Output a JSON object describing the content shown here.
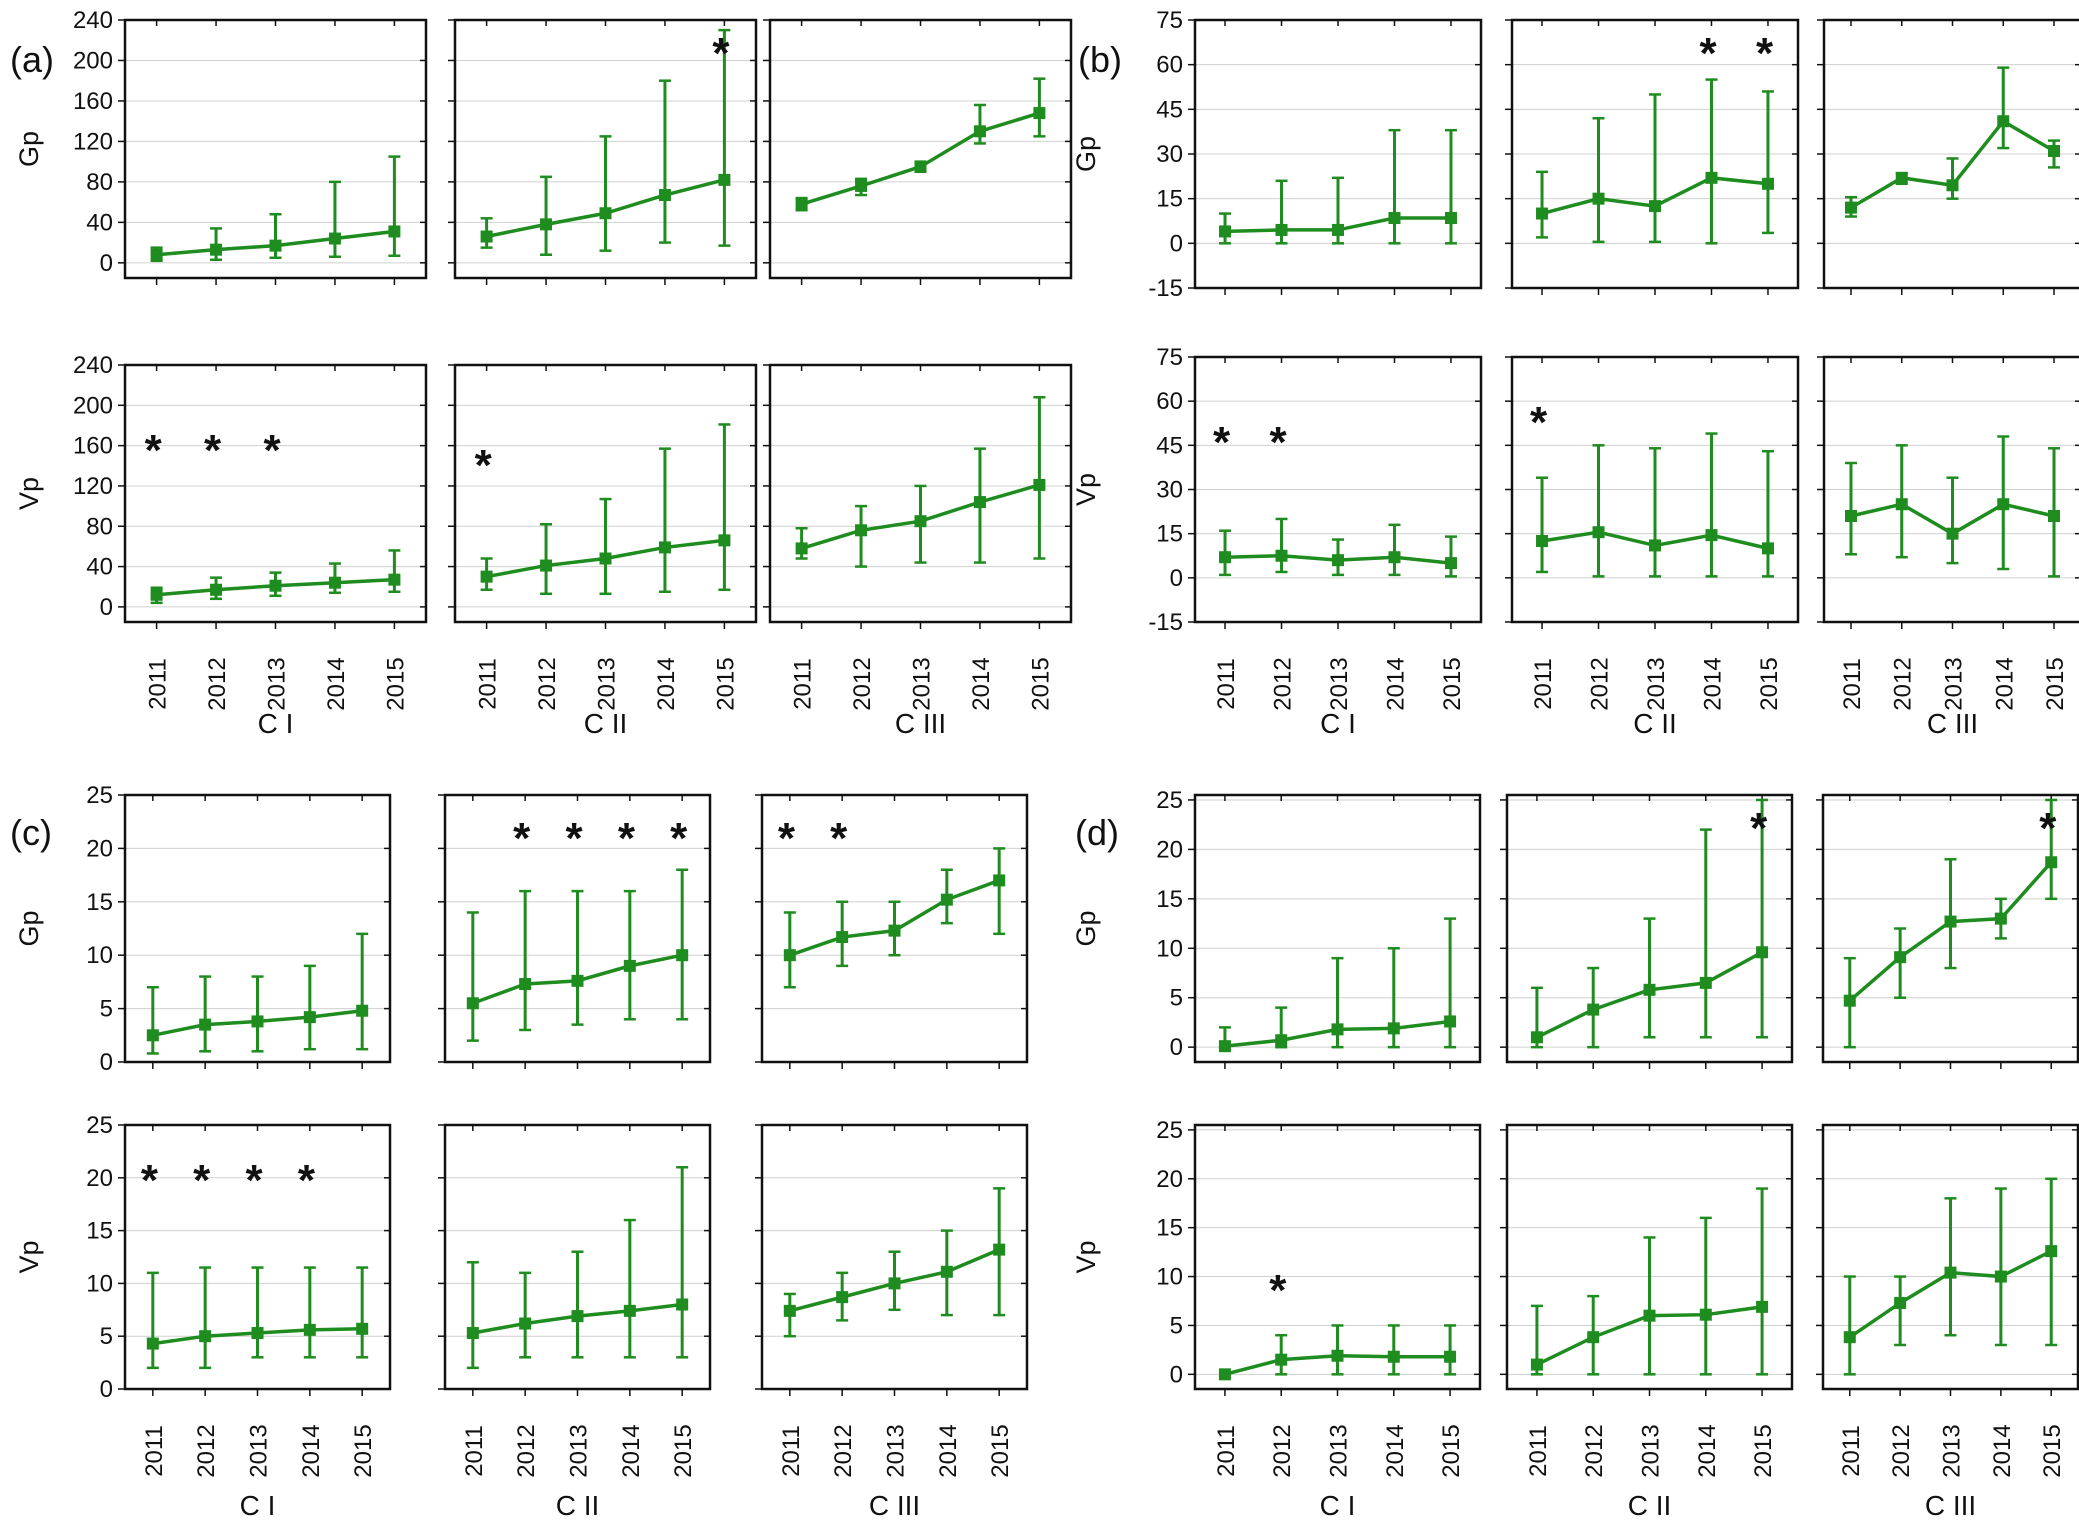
{
  "figure": {
    "years": [
      "2011",
      "2012",
      "2013",
      "2014",
      "2015"
    ],
    "groups": [
      "C I",
      "C II",
      "C III"
    ],
    "row_labels": [
      "Gp",
      "Vp"
    ],
    "line_color": "#1e8c1e",
    "grid_color": "#d0d0d0"
  },
  "chart_data": [
    {
      "panel": "(a)",
      "type": "line",
      "error_bars": true,
      "x": [
        "2011",
        "2012",
        "2013",
        "2014",
        "2015"
      ],
      "yticks": [
        0,
        40,
        80,
        120,
        160,
        200,
        240
      ],
      "ylim": [
        -15,
        240
      ],
      "grid": true,
      "rows": [
        {
          "ylabel": "Gp",
          "groups": [
            {
              "name": "C I",
              "values": [
                8,
                13,
                17,
                24,
                31
              ],
              "lower": [
                2,
                3,
                5,
                6,
                7
              ],
              "upper": [
                15,
                34,
                48,
                80,
                105
              ],
              "stars": []
            },
            {
              "name": "C II",
              "values": [
                26,
                38,
                49,
                67,
                82
              ],
              "lower": [
                15,
                8,
                12,
                20,
                17
              ],
              "upper": [
                44,
                85,
                125,
                180,
                230
              ],
              "stars": [
                "2015"
              ]
            },
            {
              "name": "C III",
              "values": [
                58,
                76,
                95,
                130,
                148
              ],
              "lower": [
                52,
                67,
                90,
                118,
                125
              ],
              "upper": [
                64,
                83,
                100,
                156,
                182
              ],
              "stars": []
            }
          ]
        },
        {
          "ylabel": "Vp",
          "groups": [
            {
              "name": "C I",
              "values": [
                12,
                17,
                21,
                24,
                27
              ],
              "lower": [
                4,
                8,
                11,
                14,
                15
              ],
              "upper": [
                19,
                29,
                34,
                43,
                56
              ],
              "stars": [
                "2011",
                "2012",
                "2013"
              ]
            },
            {
              "name": "C II",
              "values": [
                30,
                41,
                48,
                59,
                66
              ],
              "lower": [
                17,
                13,
                13,
                15,
                17
              ],
              "upper": [
                48,
                82,
                107,
                157,
                181
              ],
              "stars": [
                "2011"
              ]
            },
            {
              "name": "C III",
              "values": [
                58,
                76,
                85,
                104,
                121
              ],
              "lower": [
                48,
                40,
                44,
                44,
                48
              ],
              "upper": [
                78,
                100,
                120,
                157,
                208
              ],
              "stars": []
            }
          ]
        }
      ]
    },
    {
      "panel": "(b)",
      "type": "line",
      "error_bars": true,
      "x": [
        "2011",
        "2012",
        "2013",
        "2014",
        "2015"
      ],
      "yticks": [
        -15,
        0,
        15,
        30,
        45,
        60,
        75
      ],
      "ylim": [
        -15,
        75
      ],
      "grid": true,
      "rows": [
        {
          "ylabel": "Gp",
          "groups": [
            {
              "name": "C I",
              "values": [
                4,
                4.5,
                4.5,
                8.5,
                8.5
              ],
              "lower": [
                0,
                0,
                0,
                0,
                0
              ],
              "upper": [
                10,
                21,
                22,
                38,
                38
              ],
              "stars": []
            },
            {
              "name": "C II",
              "values": [
                10,
                15,
                12.5,
                22,
                20
              ],
              "lower": [
                2,
                0.5,
                0.5,
                0,
                3.5
              ],
              "upper": [
                24,
                42,
                50,
                55,
                51
              ],
              "stars": [
                "2014",
                "2015"
              ]
            },
            {
              "name": "C III",
              "values": [
                12,
                22,
                19.5,
                41,
                31
              ],
              "lower": [
                9,
                20,
                15,
                32,
                25.5
              ],
              "upper": [
                15.5,
                23.5,
                28.5,
                59,
                34.5
              ],
              "stars": []
            }
          ]
        },
        {
          "ylabel": "Vp",
          "groups": [
            {
              "name": "C I",
              "values": [
                7,
                7.5,
                6,
                7,
                5
              ],
              "lower": [
                1,
                2,
                1,
                1,
                0.5
              ],
              "upper": [
                16,
                20,
                13,
                18,
                14
              ],
              "stars": [
                "2011",
                "2012"
              ]
            },
            {
              "name": "C II",
              "values": [
                12.5,
                15.5,
                11,
                14.5,
                10
              ],
              "lower": [
                2,
                0.5,
                0.5,
                0.5,
                0.5
              ],
              "upper": [
                34,
                45,
                44,
                49,
                43
              ],
              "stars": [
                "2011"
              ]
            },
            {
              "name": "C III",
              "values": [
                21,
                25,
                15,
                25,
                21
              ],
              "lower": [
                8,
                7,
                5,
                3,
                0.5
              ],
              "upper": [
                39,
                45,
                34,
                48,
                44
              ],
              "stars": []
            }
          ]
        }
      ]
    },
    {
      "panel": "(c)",
      "type": "line",
      "error_bars": true,
      "x": [
        "2011",
        "2012",
        "2013",
        "2014",
        "2015"
      ],
      "yticks": [
        0,
        5,
        10,
        15,
        20,
        25
      ],
      "ylim": [
        0,
        25
      ],
      "grid": true,
      "rows": [
        {
          "ylabel": "Gp",
          "groups": [
            {
              "name": "C I",
              "values": [
                2.5,
                3.5,
                3.8,
                4.2,
                4.8
              ],
              "lower": [
                0.8,
                1,
                1,
                1.2,
                1.2
              ],
              "upper": [
                7,
                8,
                8,
                9,
                12
              ],
              "stars": []
            },
            {
              "name": "C II",
              "values": [
                5.5,
                7.3,
                7.6,
                9,
                10
              ],
              "lower": [
                2,
                3,
                3.5,
                4,
                4
              ],
              "upper": [
                14,
                16,
                16,
                16,
                18
              ],
              "stars": [
                "2012",
                "2013",
                "2014",
                "2015"
              ]
            },
            {
              "name": "C III",
              "values": [
                10,
                11.7,
                12.3,
                15.2,
                17
              ],
              "lower": [
                7,
                9,
                10,
                13,
                12
              ],
              "upper": [
                14,
                15,
                15,
                18,
                20
              ],
              "stars": [
                "2011",
                "2012"
              ]
            }
          ]
        },
        {
          "ylabel": "Vp",
          "groups": [
            {
              "name": "C I",
              "values": [
                4.3,
                5,
                5.3,
                5.6,
                5.7
              ],
              "lower": [
                2,
                2,
                3,
                3,
                3
              ],
              "upper": [
                11,
                11.5,
                11.5,
                11.5,
                11.5
              ],
              "stars": [
                "2011",
                "2012",
                "2013",
                "2014"
              ]
            },
            {
              "name": "C II",
              "values": [
                5.3,
                6.2,
                6.9,
                7.4,
                8
              ],
              "lower": [
                2,
                3,
                3,
                3,
                3
              ],
              "upper": [
                12,
                11,
                13,
                16,
                21
              ],
              "stars": []
            },
            {
              "name": "C III",
              "values": [
                7.4,
                8.7,
                10,
                11.1,
                13.2
              ],
              "lower": [
                5,
                6.5,
                7.5,
                7,
                7
              ],
              "upper": [
                9,
                11,
                13,
                15,
                19
              ],
              "stars": []
            }
          ]
        }
      ]
    },
    {
      "panel": "(d)",
      "type": "line",
      "error_bars": true,
      "x": [
        "2011",
        "2012",
        "2013",
        "2014",
        "2015"
      ],
      "yticks": [
        0,
        5,
        10,
        15,
        20,
        25
      ],
      "ylim": [
        -1.5,
        25.5
      ],
      "grid": true,
      "rows": [
        {
          "ylabel": "Gp",
          "groups": [
            {
              "name": "C I",
              "values": [
                0.1,
                0.7,
                1.8,
                1.9,
                2.6
              ],
              "lower": [
                0,
                0,
                0,
                0,
                0
              ],
              "upper": [
                2,
                4,
                9,
                10,
                13
              ],
              "stars": []
            },
            {
              "name": "C II",
              "values": [
                1,
                3.8,
                5.8,
                6.5,
                9.6
              ],
              "lower": [
                0,
                0,
                1,
                1,
                1
              ],
              "upper": [
                6,
                8,
                13,
                22,
                25
              ],
              "stars": [
                "2015"
              ]
            },
            {
              "name": "C III",
              "values": [
                4.7,
                9.1,
                12.7,
                13,
                18.7
              ],
              "lower": [
                0,
                5,
                8,
                11,
                15
              ],
              "upper": [
                9,
                12,
                19,
                15,
                25
              ],
              "stars": [
                "2015"
              ]
            }
          ]
        },
        {
          "ylabel": "Vp",
          "groups": [
            {
              "name": "C I",
              "values": [
                0,
                1.5,
                1.9,
                1.8,
                1.8
              ],
              "lower": [
                0,
                0,
                0,
                0,
                0
              ],
              "upper": [
                0,
                4,
                5,
                5,
                5
              ],
              "stars": [
                "2012"
              ]
            },
            {
              "name": "C II",
              "values": [
                1,
                3.8,
                6,
                6.1,
                6.9
              ],
              "lower": [
                0,
                0,
                0,
                0,
                0
              ],
              "upper": [
                7,
                8,
                14,
                16,
                19
              ],
              "stars": []
            },
            {
              "name": "C III",
              "values": [
                3.8,
                7.3,
                10.4,
                10,
                12.6
              ],
              "lower": [
                0,
                3,
                4,
                3,
                3
              ],
              "upper": [
                10,
                10,
                18,
                19,
                20
              ],
              "stars": []
            }
          ]
        }
      ]
    }
  ]
}
